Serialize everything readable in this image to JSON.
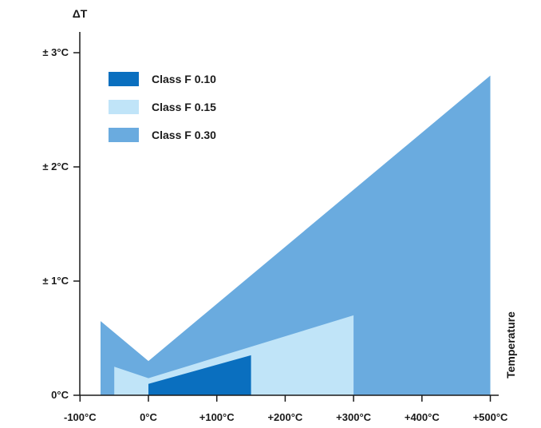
{
  "chart_data": {
    "type": "area",
    "title": "",
    "ylabel": "ΔT",
    "xlabel": "Temperature",
    "xlim": [
      -100,
      500
    ],
    "ylim": [
      0,
      3
    ],
    "x_ticks": [
      {
        "value": -100,
        "label": "-100°C"
      },
      {
        "value": 0,
        "label": "0°C"
      },
      {
        "value": 100,
        "label": "+100°C"
      },
      {
        "value": 200,
        "label": "+200°C"
      },
      {
        "value": 300,
        "label": "+300°C"
      },
      {
        "value": 400,
        "label": "+400°C"
      },
      {
        "value": 500,
        "label": "+500°C"
      }
    ],
    "y_ticks": [
      {
        "value": 0,
        "label": "0°C"
      },
      {
        "value": 1,
        "label": "± 1°C"
      },
      {
        "value": 2,
        "label": "± 2°C"
      },
      {
        "value": 3,
        "label": "± 3°C"
      }
    ],
    "grid": false,
    "legend_position": "top-left",
    "series": [
      {
        "name": "Class F 0.30",
        "color": "#6aabdf",
        "x": [
          -70,
          0,
          500
        ],
        "y": [
          0.65,
          0.3,
          2.8
        ]
      },
      {
        "name": "Class F 0.15",
        "color": "#c0e4f8",
        "x": [
          -50,
          0,
          300
        ],
        "y": [
          0.25,
          0.15,
          0.7
        ]
      },
      {
        "name": "Class F 0.10",
        "color": "#0a6fbf",
        "x": [
          0,
          150
        ],
        "y": [
          0.1,
          0.35
        ]
      }
    ],
    "legend": [
      {
        "name": "Class F 0.10",
        "color": "#0a6fbf"
      },
      {
        "name": "Class F 0.15",
        "color": "#c0e4f8"
      },
      {
        "name": "Class F 0.30",
        "color": "#6aabdf"
      }
    ]
  }
}
